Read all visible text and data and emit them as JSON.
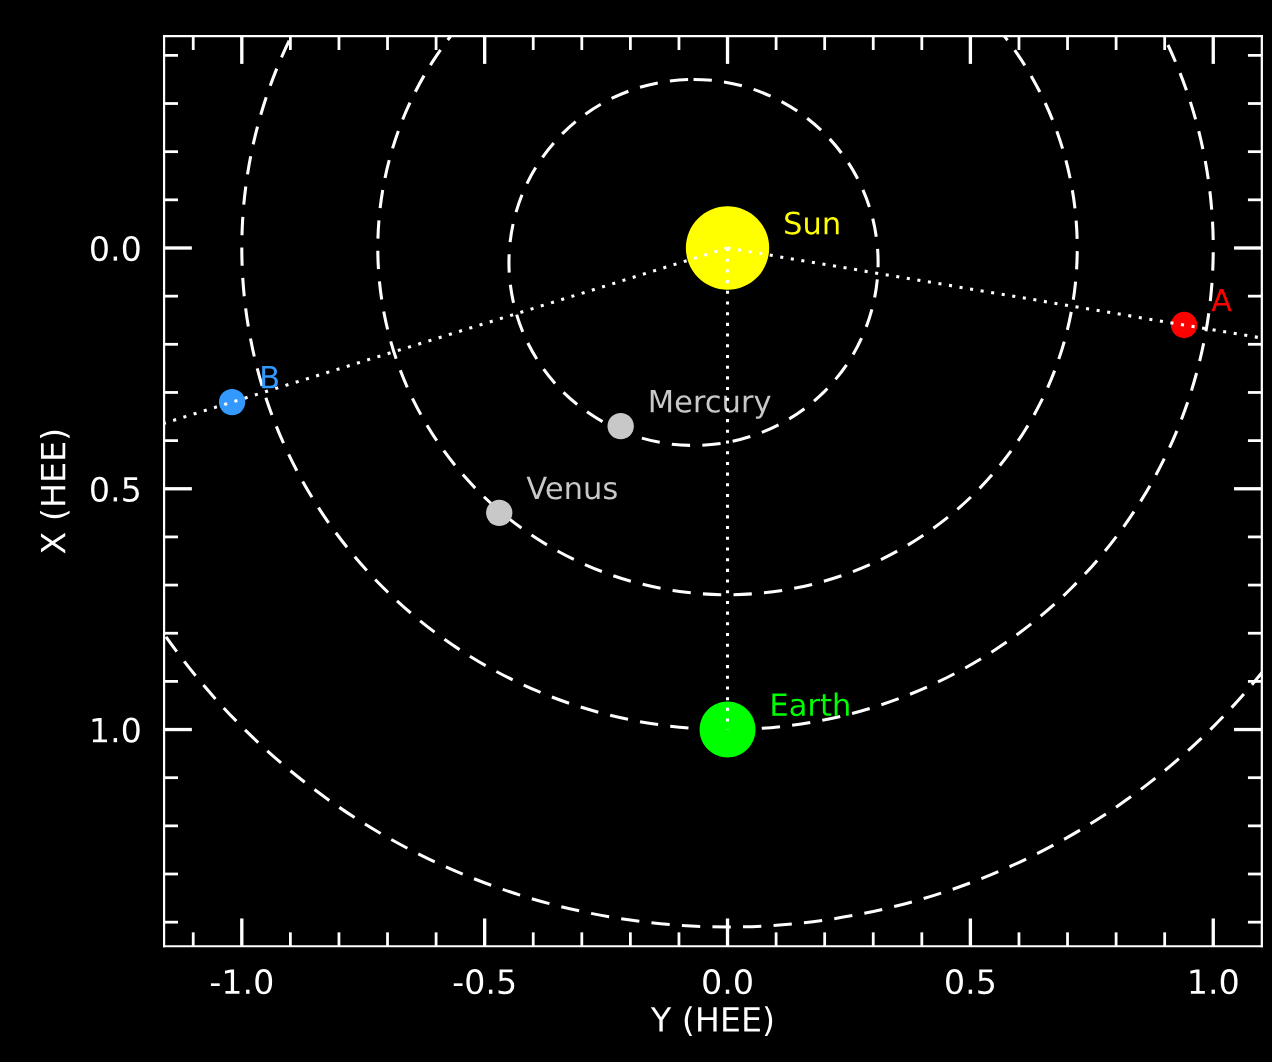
{
  "chart_data": {
    "type": "bubble",
    "xlabel": "Y (HEE)",
    "ylabel": "X (HEE)",
    "xlim": [
      -1.16,
      1.1
    ],
    "ylim": [
      1.45,
      -0.44
    ],
    "xticks": [
      {
        "value": -1.0,
        "label": "-1.0"
      },
      {
        "value": -0.5,
        "label": "-0.5"
      },
      {
        "value": 0.0,
        "label": "0.0"
      },
      {
        "value": 0.5,
        "label": "0.5"
      },
      {
        "value": 1.0,
        "label": "1.0"
      },
      {
        "value": -1.1,
        "label": null
      },
      {
        "value": -0.9,
        "label": null
      },
      {
        "value": -0.8,
        "label": null
      },
      {
        "value": -0.7,
        "label": null
      },
      {
        "value": -0.6,
        "label": null
      },
      {
        "value": -0.4,
        "label": null
      },
      {
        "value": -0.3,
        "label": null
      },
      {
        "value": -0.2,
        "label": null
      },
      {
        "value": -0.1,
        "label": null
      },
      {
        "value": 0.1,
        "label": null
      },
      {
        "value": 0.2,
        "label": null
      },
      {
        "value": 0.3,
        "label": null
      },
      {
        "value": 0.4,
        "label": null
      },
      {
        "value": 0.6,
        "label": null
      },
      {
        "value": 0.7,
        "label": null
      },
      {
        "value": 0.8,
        "label": null
      },
      {
        "value": 0.9,
        "label": null
      }
    ],
    "yticks": [
      {
        "value": 0.0,
        "label": "0.0"
      },
      {
        "value": 0.5,
        "label": "0.5"
      },
      {
        "value": 1.0,
        "label": "1.0"
      },
      {
        "value": -0.4,
        "label": null
      },
      {
        "value": -0.3,
        "label": null
      },
      {
        "value": -0.2,
        "label": null
      },
      {
        "value": -0.1,
        "label": null
      },
      {
        "value": 0.1,
        "label": null
      },
      {
        "value": 0.2,
        "label": null
      },
      {
        "value": 0.3,
        "label": null
      },
      {
        "value": 0.4,
        "label": null
      },
      {
        "value": 0.6,
        "label": null
      },
      {
        "value": 0.7,
        "label": null
      },
      {
        "value": 0.8,
        "label": null
      },
      {
        "value": 0.9,
        "label": null
      },
      {
        "value": 1.1,
        "label": null
      },
      {
        "value": 1.2,
        "label": null
      },
      {
        "value": 1.3,
        "label": null
      },
      {
        "value": 1.4,
        "label": null
      }
    ],
    "grid": false,
    "series": [
      {
        "type": "line",
        "line_style": "dotted",
        "color": "#ffffff",
        "x": [
          0.0,
          -1.02,
          -1.16
        ],
        "values": [
          0.0,
          0.32,
          0.364
        ]
      },
      {
        "type": "line",
        "line_style": "dotted",
        "color": "#ffffff",
        "x": [
          0.0,
          0.94,
          1.1
        ],
        "values": [
          0.0,
          0.16,
          0.187
        ]
      },
      {
        "type": "line",
        "line_style": "dotted",
        "color": "#ffffff",
        "x": [
          0.0,
          0.0
        ],
        "values": [
          0.0,
          1.0
        ]
      },
      {
        "name": "Sun",
        "color": "#ffff00",
        "x": [
          0.0
        ],
        "values": [
          0.0
        ],
        "sizes": [
          1
        ]
      },
      {
        "name": "Mercury",
        "color": "#c8c8c8",
        "x": [
          -0.22
        ],
        "values": [
          0.37
        ],
        "sizes": [
          0.1
        ]
      },
      {
        "name": "Venus",
        "color": "#c8c8c8",
        "x": [
          -0.47
        ],
        "values": [
          0.55
        ],
        "sizes": [
          0.1
        ]
      },
      {
        "name": "Earth",
        "color": "#00ff00",
        "x": [
          0.0
        ],
        "values": [
          1.0
        ],
        "sizes": [
          0.45
        ]
      },
      {
        "name": "A",
        "color": "#ff0000",
        "x": [
          0.94
        ],
        "values": [
          0.16
        ],
        "sizes": [
          0.1
        ]
      },
      {
        "name": "B",
        "color": "#3399ff",
        "x": [
          -1.02
        ],
        "values": [
          0.32
        ],
        "sizes": [
          0.1
        ]
      }
    ]
  }
}
